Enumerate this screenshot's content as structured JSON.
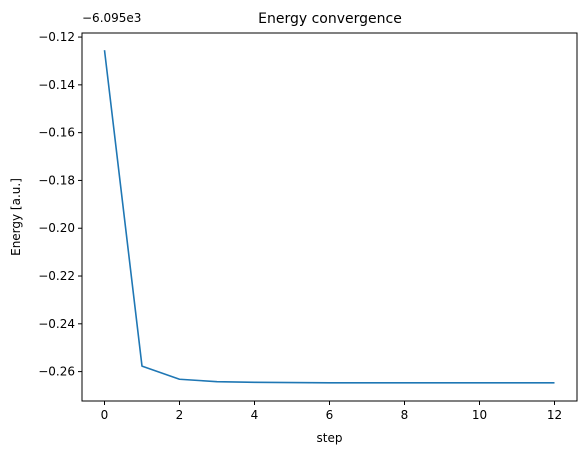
{
  "chart_data": {
    "type": "line",
    "title": "Energy convergence",
    "xlabel": "step",
    "ylabel": "Energy [a.u.]",
    "y_offset_label": "−6.095e3",
    "xlim": [
      -0.6,
      12.6
    ],
    "ylim": [
      -0.2723,
      -0.1183
    ],
    "x_ticks": [
      0,
      2,
      4,
      6,
      8,
      10,
      12
    ],
    "x_tick_labels": [
      "0",
      "2",
      "4",
      "6",
      "8",
      "10",
      "12"
    ],
    "y_ticks": [
      -0.26,
      -0.24,
      -0.22,
      -0.2,
      -0.18,
      -0.16,
      -0.14,
      -0.12
    ],
    "y_tick_labels": [
      "−0.26",
      "−0.24",
      "−0.22",
      "−0.20",
      "−0.18",
      "−0.16",
      "−0.14",
      "−0.12"
    ],
    "grid": false,
    "series": [
      {
        "color": "#1f77b4",
        "x": [
          0,
          1,
          2,
          3,
          4,
          5,
          6,
          7,
          8,
          9,
          10,
          11,
          12
        ],
        "y": [
          -0.1255,
          -0.2577,
          -0.2632,
          -0.2642,
          -0.2645,
          -0.2646,
          -0.2647,
          -0.2647,
          -0.2647,
          -0.2647,
          -0.2647,
          -0.2647,
          -0.2647
        ]
      }
    ]
  }
}
